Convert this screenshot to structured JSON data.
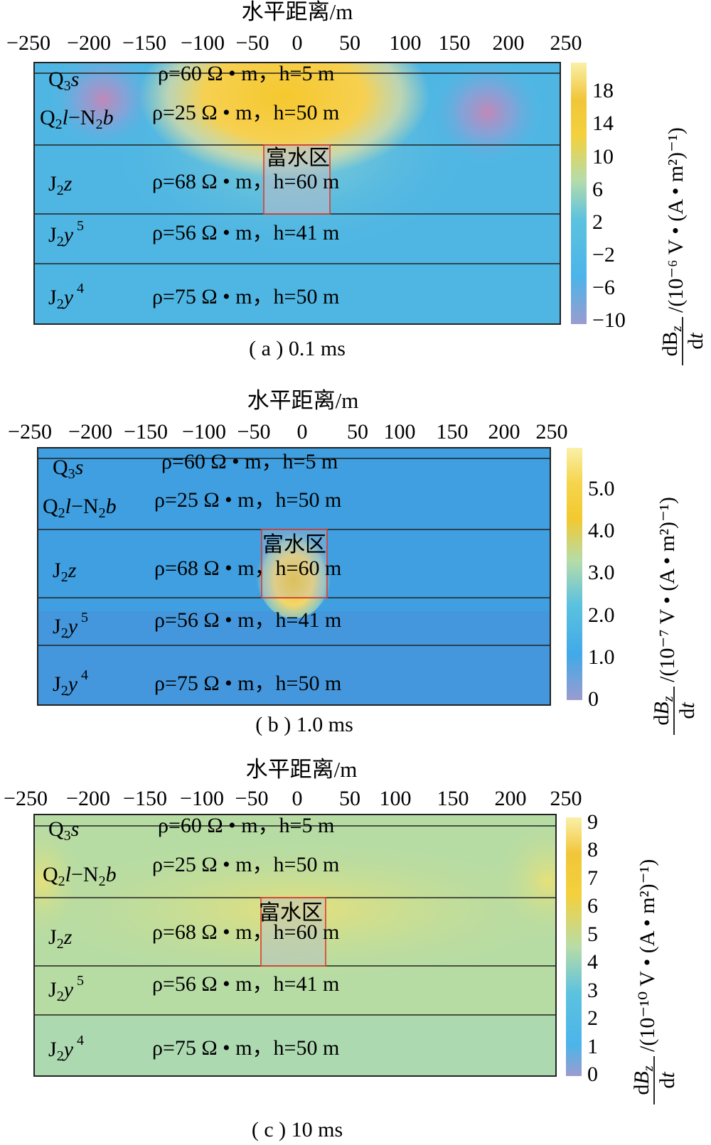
{
  "x_axis_title": "水平距离/m",
  "x_ticks": [
    "−250",
    "−200",
    "−150",
    "−100",
    "−50",
    "0",
    "50",
    "100",
    "150",
    "200",
    "250"
  ],
  "anomaly_label": "富水区",
  "layers": [
    {
      "name": "Q3s",
      "text": "ρ=60 Ω • m，h=5 m",
      "thickness_m": 5,
      "resistivity_ohm_m": 60
    },
    {
      "name": "Q2l−N2b",
      "text": "ρ=25 Ω • m，h=50 m",
      "thickness_m": 50,
      "resistivity_ohm_m": 25
    },
    {
      "name": "J2z",
      "text": "ρ=68 Ω • m，h=60 m",
      "thickness_m": 60,
      "resistivity_ohm_m": 68
    },
    {
      "name": "J2y5",
      "text": "ρ=56 Ω • m，h=41 m",
      "thickness_m": 41,
      "resistivity_ohm_m": 56
    },
    {
      "name": "J2y4",
      "text": "ρ=75 Ω • m，h=50 m",
      "thickness_m": 50,
      "resistivity_ohm_m": 75
    }
  ],
  "colorbar_title": {
    "numerator": "dB",
    "sub": "z",
    "denominator": "dt"
  },
  "panels": [
    {
      "caption": "( a ) 0.1 ms",
      "unit": "/(10⁻⁶ V • (A • m²)⁻¹)",
      "cb_ticks": [
        "18",
        "14",
        "10",
        "6",
        "2",
        "−2",
        "−6",
        "−10"
      ],
      "background": "#4fb6e3"
    },
    {
      "caption": "( b ) 1.0 ms",
      "unit": "/(10⁻⁷ V • (A • m²)⁻¹)",
      "cb_ticks": [
        "5.0",
        "4.0",
        "3.0",
        "2.0",
        "1.0",
        "0"
      ],
      "background": "#3f9fe0"
    },
    {
      "caption": "( c ) 10 ms",
      "unit": "/(10⁻¹⁰ V • (A • m²)⁻¹)",
      "cb_ticks": [
        "9",
        "8",
        "7",
        "6",
        "5",
        "4",
        "3",
        "2",
        "1",
        "0"
      ],
      "background": "#b6dca4"
    }
  ],
  "chart_data": [
    {
      "type": "heatmap",
      "title": "( a ) 0.1 ms",
      "xlabel": "水平距离/m",
      "xlim": [
        -250,
        250
      ],
      "colorbar_range": [
        -10,
        20
      ],
      "colorbar_ticks": [
        18,
        14,
        10,
        6,
        2,
        -2,
        -6,
        -10
      ],
      "anomaly": {
        "label": "富水区",
        "x_range": [
          -30,
          30
        ]
      },
      "features": [
        {
          "description_value": "maximum",
          "x_range": [
            -120,
            110
          ],
          "approx_value": 18
        },
        {
          "description_value": "minimum",
          "x": -185,
          "approx_value": -8
        },
        {
          "description_value": "minimum",
          "x": 185,
          "approx_value": -8
        }
      ]
    },
    {
      "type": "heatmap",
      "title": "( b ) 1.0 ms",
      "xlabel": "水平距离/m",
      "xlim": [
        -250,
        250
      ],
      "colorbar_range": [
        0,
        5.8
      ],
      "colorbar_ticks": [
        5.0,
        4.0,
        3.0,
        2.0,
        1.0,
        0
      ],
      "anomaly": {
        "label": "富水区",
        "x_range": [
          -30,
          30
        ]
      },
      "features": [
        {
          "description_value": "maximum",
          "x": 0,
          "approx_value": 4.5
        }
      ]
    },
    {
      "type": "heatmap",
      "title": "( c ) 10 ms",
      "xlabel": "水平距离/m",
      "xlim": [
        -250,
        250
      ],
      "colorbar_range": [
        0,
        9
      ],
      "colorbar_ticks": [
        9,
        8,
        7,
        6,
        5,
        4,
        3,
        2,
        1,
        0
      ],
      "anomaly": {
        "label": "富水区",
        "x_range": [
          -30,
          30
        ]
      },
      "features": [
        {
          "description_value": "background",
          "approx_value": 5
        }
      ]
    }
  ]
}
